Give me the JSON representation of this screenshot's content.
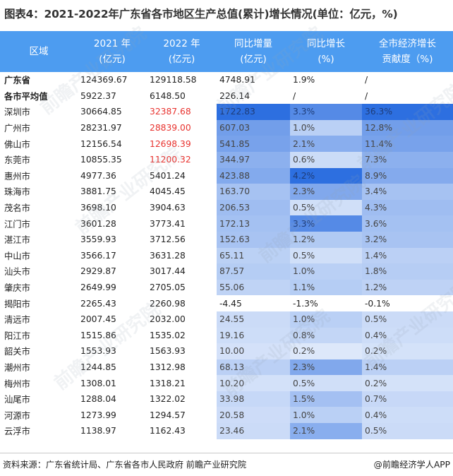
{
  "title": "图表4：2021-2022年广东省各市地区生产总值(累计)增长情况(单位：亿元，%)",
  "header": {
    "region": "区域",
    "y2021_a": "2021 年",
    "y2021_b": "(亿元)",
    "y2022_a": "2022 年",
    "y2022_b": "(亿元)",
    "incr_a": "同比增量",
    "incr_b": "(亿元)",
    "growth_a": "同比增长",
    "growth_b": "(%)",
    "contrib_a": "全市经济增长",
    "contrib_b": "贡献度（%)"
  },
  "rows": [
    {
      "region": "广东省",
      "y2021": "124369.67",
      "y2022": "129118.58",
      "incr": "4748.91",
      "growth": "1.9%",
      "contrib": "/"
    },
    {
      "region": "各市平均值",
      "y2021": "5922.37",
      "y2022": "6148.50",
      "incr": "226.14",
      "growth": "/",
      "contrib": "/"
    },
    {
      "region": "深圳市",
      "y2021": "30664.85",
      "y2022": "32387.68",
      "incr": "1722.83",
      "growth": "3.3%",
      "contrib": "36.3%"
    },
    {
      "region": "广州市",
      "y2021": "28231.97",
      "y2022": "28839.00",
      "incr": "607.03",
      "growth": "1.0%",
      "contrib": "12.8%"
    },
    {
      "region": "佛山市",
      "y2021": "12156.54",
      "y2022": "12698.39",
      "incr": "541.85",
      "growth": "2.1%",
      "contrib": "11.4%"
    },
    {
      "region": "东莞市",
      "y2021": "10855.35",
      "y2022": "11200.32",
      "incr": "344.97",
      "growth": "0.6%",
      "contrib": "7.3%"
    },
    {
      "region": "惠州市",
      "y2021": "4977.36",
      "y2022": "5401.24",
      "incr": "423.88",
      "growth": "4.2%",
      "contrib": "8.9%"
    },
    {
      "region": "珠海市",
      "y2021": "3881.75",
      "y2022": "4045.45",
      "incr": "163.70",
      "growth": "2.3%",
      "contrib": "3.4%"
    },
    {
      "region": "茂名市",
      "y2021": "3698.10",
      "y2022": "3904.63",
      "incr": "206.53",
      "growth": "0.5%",
      "contrib": "4.3%"
    },
    {
      "region": "江门市",
      "y2021": "3601.28",
      "y2022": "3773.41",
      "incr": "172.13",
      "growth": "3.3%",
      "contrib": "3.6%"
    },
    {
      "region": "湛江市",
      "y2021": "3559.93",
      "y2022": "3712.56",
      "incr": "152.63",
      "growth": "1.2%",
      "contrib": "3.2%"
    },
    {
      "region": "中山市",
      "y2021": "3566.17",
      "y2022": "3631.28",
      "incr": "65.11",
      "growth": "0.5%",
      "contrib": "1.4%"
    },
    {
      "region": "汕头市",
      "y2021": "2929.87",
      "y2022": "3017.44",
      "incr": "87.57",
      "growth": "1.0%",
      "contrib": "1.8%"
    },
    {
      "region": "肇庆市",
      "y2021": "2649.99",
      "y2022": "2705.05",
      "incr": "55.06",
      "growth": "1.1%",
      "contrib": "1.2%"
    },
    {
      "region": "揭阳市",
      "y2021": "2265.43",
      "y2022": "2260.98",
      "incr": "-4.45",
      "growth": "-1.3%",
      "contrib": "-0.1%"
    },
    {
      "region": "清远市",
      "y2021": "2007.45",
      "y2022": "2032.00",
      "incr": "24.55",
      "growth": "1.0%",
      "contrib": "0.5%"
    },
    {
      "region": "阳江市",
      "y2021": "1515.86",
      "y2022": "1535.02",
      "incr": "19.16",
      "growth": "0.8%",
      "contrib": "0.4%"
    },
    {
      "region": "韶关市",
      "y2021": "1553.93",
      "y2022": "1563.93",
      "incr": "10.00",
      "growth": "0.2%",
      "contrib": "0.2%"
    },
    {
      "region": "潮州市",
      "y2021": "1244.85",
      "y2022": "1312.98",
      "incr": "68.13",
      "growth": "2.3%",
      "contrib": "1.4%"
    },
    {
      "region": "梅州市",
      "y2021": "1308.01",
      "y2022": "1318.21",
      "incr": "10.20",
      "growth": "0.5%",
      "contrib": "0.2%"
    },
    {
      "region": "汕尾市",
      "y2021": "1288.04",
      "y2022": "1322.02",
      "incr": "33.98",
      "growth": "1.5%",
      "contrib": "0.7%"
    },
    {
      "region": "河源市",
      "y2021": "1273.99",
      "y2022": "1294.57",
      "incr": "20.58",
      "growth": "1.0%",
      "contrib": "0.4%"
    },
    {
      "region": "云浮市",
      "y2021": "1138.97",
      "y2022": "1162.43",
      "incr": "23.46",
      "growth": "2.1%",
      "contrib": "0.5%"
    }
  ],
  "footer": {
    "source": "资料来源：广东省统计局、广东省各市人民政府 前瞻产业研究院",
    "brand": "@前瞻经济学人APP"
  },
  "colors": {
    "header_bg": "#4d9cf0",
    "header_text": "#ffffff",
    "red_value": "#e8322e",
    "heat_max": "#2d6fe0",
    "heat_min": "#ffffff"
  }
}
